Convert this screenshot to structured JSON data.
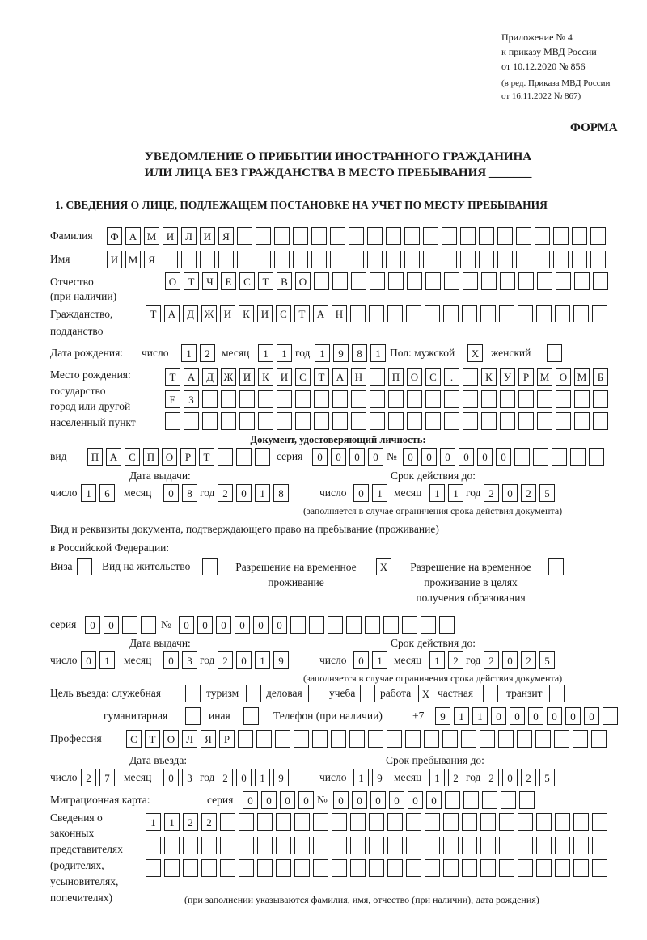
{
  "header": {
    "appendix": "Приложение № 4",
    "order": "к приказу МВД России",
    "date": "от 10.12.2020 № 856",
    "edition1": "(в ред. Приказа МВД России",
    "edition2": "от 16.11.2022 № 867)",
    "form": "ФОРМА",
    "title1": "УВЕДОМЛЕНИЕ О ПРИБЫТИИ ИНОСТРАННОГО ГРАЖДАНИНА",
    "title2": "ИЛИ ЛИЦА БЕЗ ГРАЖДАНСТВА В МЕСТО ПРЕБЫВАНИЯ _______",
    "section1": "1. СВЕДЕНИЯ О ЛИЦЕ, ПОДЛЕЖАЩЕМ ПОСТАНОВКЕ НА УЧЕТ ПО МЕСТУ ПРЕБЫВАНИЯ"
  },
  "labels": {
    "surname": "Фамилия",
    "name": "Имя",
    "patronymic": "Отчество",
    "patronymic2": "(при наличии)",
    "citizenship": "Гражданство,",
    "citizenship2": "подданство",
    "birth_date": "Дата рождения:",
    "day": "число",
    "month": "месяц",
    "year": "год",
    "sex": "Пол: мужской",
    "female": "женский",
    "birthplace1": "Место рождения:",
    "birthplace2": "государство",
    "birthplace3": "город или другой",
    "birthplace4": "населенный пункт",
    "id_doc": "Документ, удостоверяющий личность:",
    "kind": "вид",
    "series": "серия",
    "number": "№",
    "issue_date": "Дата выдачи:",
    "valid_until": "Срок действия до:",
    "validity_note": "(заполняется в случае ограничения срока действия документа)",
    "right_doc1": "Вид и реквизиты документа, подтверждающего право на пребывание (проживание)",
    "right_doc2": "в Российской Федерации:",
    "visa": "Виза",
    "residence_permit": "Вид на жительство",
    "temp_residence1": "Разрешение на временное",
    "temp_residence2": "проживание",
    "temp_edu1": "Разрешение на временное",
    "temp_edu2": "проживание в целях",
    "temp_edu3": "получения образования",
    "purpose": "Цель въезда: служебная",
    "tourism": "туризм",
    "business": "деловая",
    "study": "учеба",
    "work": "работа",
    "private": "частная",
    "transit": "транзит",
    "humanitarian": "гуманитарная",
    "other": "иная",
    "phone": "Телефон (при наличии)",
    "phone_prefix": "+7",
    "profession": "Профессия",
    "entry_date": "Дата въезда:",
    "stay_until": "Срок пребывания до:",
    "migration_card": "Миграционная карта:",
    "reps1": "Сведения о",
    "reps2": "законных",
    "reps3": "представителях",
    "reps4": "(родителях,",
    "reps5": "усыновителях,",
    "reps6": "попечителях)",
    "reps_note": "(при заполнении указываются фамилия, имя, отчество (при наличии), дата рождения)"
  },
  "values": {
    "surname": "ФАМИЛИЯ",
    "name": "ИМЯ",
    "patronymic": "ОТЧЕСТВО",
    "citizenship": "ТАДЖИКИСТАН",
    "birth_day": "12",
    "birth_month": "11",
    "birth_year": "1981",
    "sex_male": "X",
    "sex_female": "",
    "birthplace_line1": "ТАДЖИКИСТАН ПОС. КУРМОМБ",
    "birthplace_line2": "ЕЗ",
    "birthplace_line3": "",
    "id_kind": "ПАСПОРТ",
    "id_series": "0000",
    "id_number": "000000",
    "id_issue_day": "16",
    "id_issue_month": "08",
    "id_issue_year": "2018",
    "id_valid_day": "01",
    "id_valid_month": "11",
    "id_valid_year": "2025",
    "visa": "",
    "residence_permit": "",
    "temp_residence": "X",
    "temp_edu": "",
    "rd_series": "00",
    "rd_number": "000000",
    "rd_issue_day": "01",
    "rd_issue_month": "03",
    "rd_issue_year": "2019",
    "rd_valid_day": "01",
    "rd_valid_month": "12",
    "rd_valid_year": "2025",
    "p_official": "",
    "p_tourism": "",
    "p_business": "",
    "p_study": "",
    "p_work": "X",
    "p_private": "",
    "p_transit": "",
    "p_humanitarian": "",
    "p_other": "",
    "phone": "911000000",
    "profession": "СТОЛЯР",
    "entry_day": "27",
    "entry_month": "03",
    "entry_year": "2019",
    "stay_day": "19",
    "stay_month": "12",
    "stay_year": "2025",
    "mc_series": "0000",
    "mc_number": "000000",
    "reps_line1": "1122",
    "reps_line2": "",
    "reps_line3": ""
  }
}
